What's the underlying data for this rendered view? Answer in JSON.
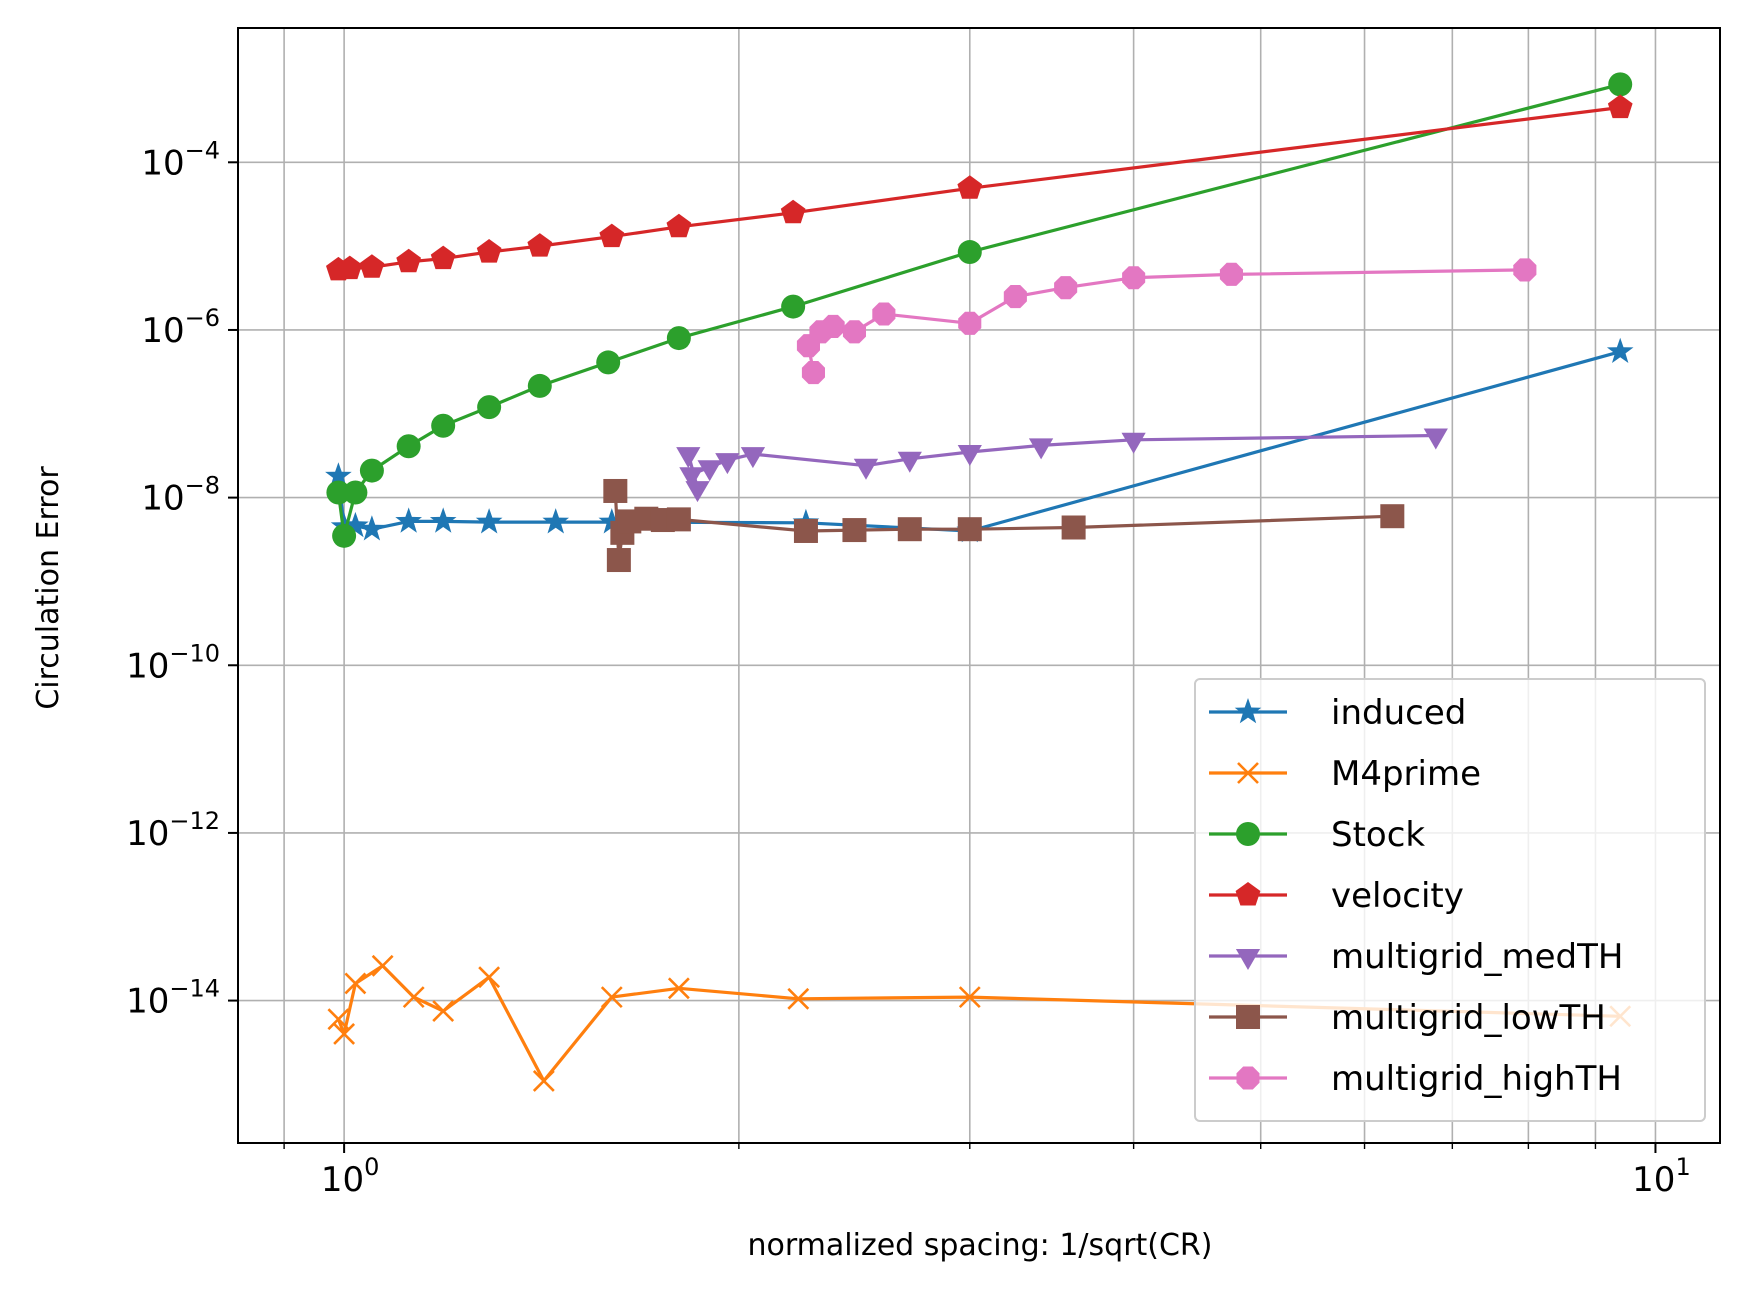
{
  "chart_data": {
    "type": "line",
    "title": "",
    "xlabel": "normalized spacing: 1/sqrt(CR)",
    "ylabel": "Circulation Error",
    "xscale": "log",
    "yscale": "log",
    "xlim": [
      0.83,
      11.2
    ],
    "ylim": [
      2e-16,
      0.004
    ],
    "grid": true,
    "legend_position": "lower-right",
    "x_ticks": [
      {
        "value": 1,
        "base": "10",
        "exp": "0"
      },
      {
        "value": 10,
        "base": "10",
        "exp": "1"
      }
    ],
    "y_ticks": [
      {
        "value": 1e-14,
        "base": "10",
        "exp": "−14"
      },
      {
        "value": 1e-12,
        "base": "10",
        "exp": "−12"
      },
      {
        "value": 1e-10,
        "base": "10",
        "exp": "−10"
      },
      {
        "value": 1e-08,
        "base": "10",
        "exp": "−8"
      },
      {
        "value": 1e-06,
        "base": "10",
        "exp": "−6"
      },
      {
        "value": 0.0001,
        "base": "10",
        "exp": "−4"
      }
    ],
    "series": [
      {
        "name": "induced",
        "color": "#1f77b4",
        "marker": "star",
        "x": [
          0.99,
          1.0,
          1.02,
          1.05,
          1.12,
          1.19,
          1.29,
          1.45,
          1.6,
          2.25,
          3.0,
          9.4
        ],
        "y": [
          1.8e-08,
          4.5e-09,
          4.6e-09,
          4.2e-09,
          5.2e-09,
          5.2e-09,
          5.1e-09,
          5.1e-09,
          5.1e-09,
          5e-09,
          4e-09,
          5.5e-07
        ]
      },
      {
        "name": "M4prime",
        "color": "#ff7f0e",
        "marker": "x",
        "x": [
          0.99,
          1.0,
          1.02,
          1.07,
          1.13,
          1.19,
          1.29,
          1.42,
          1.6,
          1.8,
          2.22,
          3.0,
          9.4
        ],
        "y": [
          6e-15,
          4e-15,
          1.6e-14,
          2.6e-14,
          1.1e-14,
          7.5e-15,
          1.9e-14,
          1.1e-15,
          1.1e-14,
          1.4e-14,
          1.05e-14,
          1.1e-14,
          6.5e-15
        ]
      },
      {
        "name": "Stock",
        "color": "#2ca02c",
        "marker": "circle",
        "x": [
          0.99,
          1.0,
          1.02,
          1.05,
          1.12,
          1.19,
          1.29,
          1.41,
          1.59,
          1.8,
          2.2,
          3.0,
          9.4
        ],
        "y": [
          1.15e-08,
          3.5e-09,
          1.15e-08,
          2.1e-08,
          4.1e-08,
          7.2e-08,
          1.2e-07,
          2.15e-07,
          4.1e-07,
          8e-07,
          1.9e-06,
          8.5e-06,
          0.00085
        ]
      },
      {
        "name": "velocity",
        "color": "#d62728",
        "marker": "pentagon",
        "x": [
          0.99,
          1.01,
          1.05,
          1.12,
          1.19,
          1.29,
          1.41,
          1.6,
          1.8,
          2.2,
          3.0,
          9.4
        ],
        "y": [
          5.2e-06,
          5.4e-06,
          5.6e-06,
          6.5e-06,
          7.1e-06,
          8.5e-06,
          1e-05,
          1.3e-05,
          1.7e-05,
          2.5e-05,
          4.9e-05,
          0.00045
        ]
      },
      {
        "name": "multigrid_medTH",
        "color": "#9467bd",
        "marker": "triangle-down",
        "x": [
          1.83,
          1.86,
          1.84,
          1.9,
          1.96,
          2.05,
          2.5,
          2.7,
          3.0,
          3.4,
          4.0,
          6.8
        ],
        "y": [
          3.3e-08,
          1.3e-08,
          1.9e-08,
          2.3e-08,
          2.8e-08,
          3.3e-08,
          2.4e-08,
          2.9e-08,
          3.5e-08,
          4.2e-08,
          4.9e-08,
          5.5e-08
        ]
      },
      {
        "name": "multigrid_lowTH",
        "color": "#8c564b",
        "marker": "square",
        "x": [
          1.61,
          1.62,
          1.63,
          1.65,
          1.7,
          1.75,
          1.8,
          2.25,
          2.45,
          2.7,
          3.0,
          3.6,
          6.3
        ],
        "y": [
          1.2e-08,
          1.8e-09,
          3.8e-09,
          5.2e-09,
          5.6e-09,
          5.4e-09,
          5.5e-09,
          4e-09,
          4.1e-09,
          4.2e-09,
          4.2e-09,
          4.4e-09,
          6e-09
        ]
      },
      {
        "name": "multigrid_highTH",
        "color": "#e377c2",
        "marker": "octagon",
        "x": [
          2.28,
          2.26,
          2.31,
          2.36,
          2.45,
          2.58,
          3.0,
          3.25,
          3.55,
          4.0,
          4.75,
          7.95
        ],
        "y": [
          3.1e-07,
          6.5e-07,
          9.5e-07,
          1.1e-06,
          9.5e-07,
          1.55e-06,
          1.2e-06,
          2.5e-06,
          3.2e-06,
          4.2e-06,
          4.6e-06,
          5.2e-06
        ]
      }
    ]
  }
}
